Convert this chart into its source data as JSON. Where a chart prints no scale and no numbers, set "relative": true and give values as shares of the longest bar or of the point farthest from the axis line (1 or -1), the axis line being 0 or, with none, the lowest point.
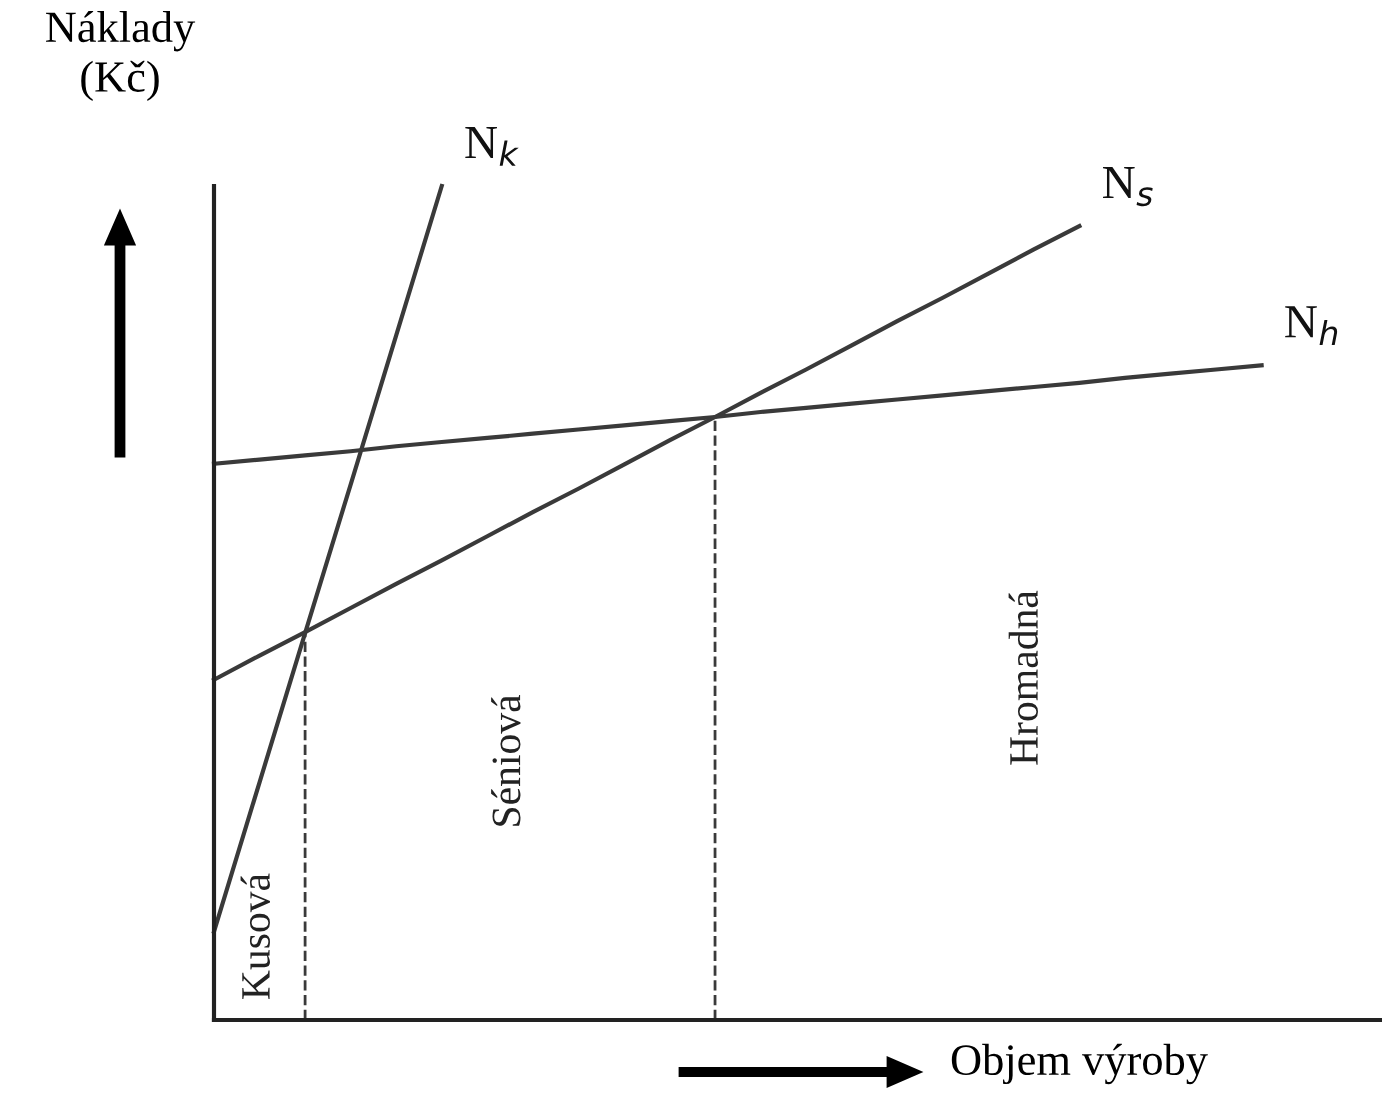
{
  "chart_data": {
    "type": "line",
    "relative": true,
    "xlabel": "Objem výroby",
    "ylabel": "Náklady\n(Kč)",
    "legend": false,
    "marker": "none",
    "categories": [
      null,
      null,
      null,
      null,
      null,
      null,
      null,
      null,
      null,
      null,
      null,
      null,
      null,
      null,
      null,
      null,
      null,
      null,
      null,
      null,
      null,
      null,
      null,
      null
    ],
    "series": [
      {
        "name": "N$_{k}$",
        "color": "#3a3a3a",
        "values": [
          0.106,
          0.285,
          0.464,
          0.642,
          0.821,
          1.0,
          null,
          null,
          null,
          null,
          null,
          null,
          null,
          null,
          null,
          null,
          null,
          null,
          null,
          null,
          null,
          null,
          null,
          null
        ]
      },
      {
        "name": "N$_{s}$",
        "color": "#3a3a3a",
        "values": [
          0.408,
          0.437,
          0.465,
          0.494,
          0.523,
          0.551,
          0.58,
          0.609,
          0.637,
          0.666,
          0.695,
          0.723,
          0.752,
          0.78,
          0.809,
          0.838,
          0.866,
          0.895,
          0.924,
          0.952,
          null,
          null,
          null,
          null
        ]
      },
      {
        "name": "N$_{h}$",
        "color": "#3a3a3a",
        "values": [
          0.667,
          0.672,
          0.677,
          0.682,
          0.688,
          0.693,
          0.698,
          0.703,
          0.708,
          0.713,
          0.718,
          0.723,
          0.729,
          0.734,
          0.739,
          0.744,
          0.749,
          0.754,
          0.759,
          0.764,
          0.77,
          0.775,
          0.78,
          0.785
        ]
      }
    ],
    "annotations": [
      "Kusová",
      "Séniová",
      "Hromadná"
    ]
  }
}
